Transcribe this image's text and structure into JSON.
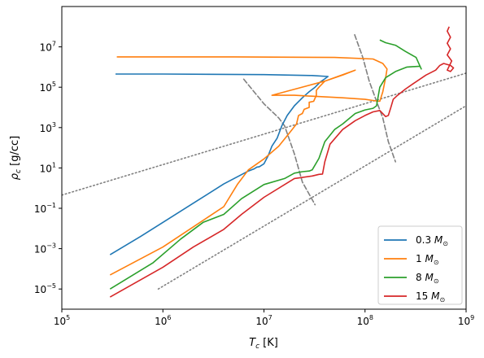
{
  "chart_data": {
    "type": "line",
    "xlabel_main": "T",
    "xlabel_sub": "c",
    "xlabel_unit": " [K]",
    "ylabel_main": "ρ",
    "ylabel_sub": "c",
    "ylabel_unit": " [g/cc]",
    "x_scale": "log",
    "y_scale": "log",
    "xlim": [
      100000,
      1000000000
    ],
    "ylim": [
      1e-06,
      1000000000
    ],
    "x_ticks": [
      {
        "value": 100000,
        "base": "10",
        "exp": "5"
      },
      {
        "value": 1000000,
        "base": "10",
        "exp": "6"
      },
      {
        "value": 10000000,
        "base": "10",
        "exp": "7"
      },
      {
        "value": 100000000,
        "base": "10",
        "exp": "8"
      },
      {
        "value": 1000000000,
        "base": "10",
        "exp": "9"
      }
    ],
    "y_ticks": [
      {
        "value": 1e-05,
        "base": "10",
        "exp": "−5"
      },
      {
        "value": 0.001,
        "base": "10",
        "exp": "−3"
      },
      {
        "value": 0.1,
        "base": "10",
        "exp": "−1"
      },
      {
        "value": 10,
        "base": "10",
        "exp": "1"
      },
      {
        "value": 1000,
        "base": "10",
        "exp": "3"
      },
      {
        "value": 100000,
        "base": "10",
        "exp": "5"
      },
      {
        "value": 10000000,
        "base": "10",
        "exp": "7"
      }
    ],
    "grid": false,
    "legend_position": "lower-right",
    "series": [
      {
        "name": "0.3",
        "name_unit": "M",
        "name_sub": "⊙",
        "color": "#1f77b4",
        "points": [
          [
            300000,
            0.0005
          ],
          [
            600000,
            0.004
          ],
          [
            1000000,
            0.02
          ],
          [
            2000000,
            0.18
          ],
          [
            4000000,
            1.6
          ],
          [
            7000000,
            7
          ],
          [
            8000000,
            9
          ],
          [
            8500000,
            11
          ],
          [
            9000000,
            11.5
          ],
          [
            10000000,
            16
          ],
          [
            11000000,
            40
          ],
          [
            12000000,
            120
          ],
          [
            13500000,
            300
          ],
          [
            15000000,
            1200
          ],
          [
            17000000,
            4000
          ],
          [
            20000000,
            12000
          ],
          [
            24000000,
            30000
          ],
          [
            28000000,
            60000
          ],
          [
            32000000,
            100000
          ],
          [
            36000000,
            180000
          ],
          [
            40000000,
            260000
          ],
          [
            43000000,
            340000
          ],
          [
            30000000,
            380000
          ],
          [
            10000000,
            420000
          ],
          [
            1000000,
            450000
          ],
          [
            340000,
            450000
          ]
        ]
      },
      {
        "name": "1",
        "name_unit": "M",
        "name_sub": "⊙",
        "color": "#ff7f0e",
        "points": [
          [
            300000,
            5e-05
          ],
          [
            1000000,
            0.0012
          ],
          [
            2000000,
            0.012
          ],
          [
            4000000,
            0.12
          ],
          [
            5500000,
            1.6
          ],
          [
            7000000,
            8
          ],
          [
            10000000,
            28
          ],
          [
            14000000,
            120
          ],
          [
            17000000,
            400
          ],
          [
            19000000,
            800
          ],
          [
            21000000,
            1500
          ],
          [
            22000000,
            4000
          ],
          [
            24000000,
            5000
          ],
          [
            25000000,
            8000
          ],
          [
            28000000,
            10000
          ],
          [
            28000000,
            18000
          ],
          [
            31000000,
            20000
          ],
          [
            33000000,
            40000
          ],
          [
            33000000,
            70000
          ],
          [
            35000000,
            100000
          ],
          [
            40000000,
            200000
          ],
          [
            60000000,
            400000
          ],
          [
            80000000,
            700000
          ],
          [
            40000000,
            200000
          ],
          [
            12000000,
            40000
          ],
          [
            20000000,
            40000
          ],
          [
            60000000,
            30000
          ],
          [
            100000000,
            25000
          ],
          [
            120000000,
            22000
          ],
          [
            140000000,
            20000
          ],
          [
            150000000,
            60000
          ],
          [
            160000000,
            300000
          ],
          [
            165000000,
            800000
          ],
          [
            150000000,
            1500000
          ],
          [
            120000000,
            2500000
          ],
          [
            50000000,
            3000000
          ],
          [
            5000000,
            3200000
          ],
          [
            350000,
            3200000
          ]
        ]
      },
      {
        "name": "8",
        "name_unit": "M",
        "name_sub": "⊙",
        "color": "#2ca02c",
        "points": [
          [
            300000,
            1e-05
          ],
          [
            800000,
            0.0002
          ],
          [
            1500000,
            0.003
          ],
          [
            2500000,
            0.02
          ],
          [
            4000000,
            0.05
          ],
          [
            6000000,
            0.3
          ],
          [
            10000000,
            1.5
          ],
          [
            16000000,
            3
          ],
          [
            20000000,
            5.5
          ],
          [
            24000000,
            6.5
          ],
          [
            28000000,
            7
          ],
          [
            30000000,
            8
          ],
          [
            35000000,
            30
          ],
          [
            40000000,
            200
          ],
          [
            50000000,
            800
          ],
          [
            60000000,
            1500
          ],
          [
            80000000,
            5000
          ],
          [
            100000000,
            7500
          ],
          [
            120000000,
            9000
          ],
          [
            130000000,
            12000
          ],
          [
            140000000,
            100000
          ],
          [
            160000000,
            300000
          ],
          [
            200000000,
            600000
          ],
          [
            260000000,
            1000000
          ],
          [
            350000000,
            1100000
          ],
          [
            360000000,
            800000
          ],
          [
            320000000,
            3000000
          ],
          [
            250000000,
            6000000
          ],
          [
            200000000,
            12000000
          ],
          [
            160000000,
            16000000
          ],
          [
            140000000,
            22000000
          ]
        ]
      },
      {
        "name": "15",
        "name_unit": "M",
        "name_sub": "⊙",
        "color": "#d62728",
        "points": [
          [
            300000,
            4e-06
          ],
          [
            1000000,
            0.00012
          ],
          [
            2000000,
            0.0012
          ],
          [
            4000000,
            0.009
          ],
          [
            6000000,
            0.05
          ],
          [
            10000000,
            0.35
          ],
          [
            20000000,
            3
          ],
          [
            30000000,
            4
          ],
          [
            35000000,
            4.8
          ],
          [
            38000000,
            5
          ],
          [
            40000000,
            20
          ],
          [
            45000000,
            150
          ],
          [
            60000000,
            800
          ],
          [
            80000000,
            2200
          ],
          [
            100000000,
            4000
          ],
          [
            120000000,
            6000
          ],
          [
            140000000,
            7000
          ],
          [
            160000000,
            3500
          ],
          [
            170000000,
            4000
          ],
          [
            180000000,
            10000
          ],
          [
            190000000,
            25000
          ],
          [
            210000000,
            40000
          ],
          [
            250000000,
            80000
          ],
          [
            300000000,
            150000
          ],
          [
            400000000,
            400000
          ],
          [
            500000000,
            700000
          ],
          [
            550000000,
            1200000
          ],
          [
            600000000,
            1500000
          ],
          [
            700000000,
            1200000
          ],
          [
            750000000,
            900000
          ],
          [
            700000000,
            600000
          ],
          [
            650000000,
            700000
          ],
          [
            720000000,
            2000000
          ],
          [
            650000000,
            4000000
          ],
          [
            700000000,
            8000000
          ],
          [
            650000000,
            15000000
          ],
          [
            700000000,
            30000000
          ],
          [
            650000000,
            60000000
          ],
          [
            680000000,
            100000000
          ]
        ]
      }
    ],
    "reference_lines": [
      {
        "style": "dotted",
        "color": "#808080",
        "points": [
          [
            100000,
            0.45
          ],
          [
            1000000000,
            500000
          ]
        ]
      },
      {
        "style": "dotted",
        "color": "#808080",
        "points": [
          [
            900000,
            1e-05
          ],
          [
            1000000000,
            12000
          ]
        ]
      },
      {
        "style": "dashed",
        "color": "#808080",
        "points": [
          [
            6300000,
            250000
          ],
          [
            10000000,
            15000
          ],
          [
            14000000,
            3000
          ],
          [
            16000000,
            1200
          ],
          [
            20000000,
            50
          ],
          [
            24000000,
            2
          ],
          [
            32000000,
            0.15
          ]
        ]
      },
      {
        "style": "dashed",
        "color": "#808080",
        "points": [
          [
            79000000,
            40000000
          ],
          [
            95000000,
            3000000
          ],
          [
            110000000,
            200000
          ],
          [
            130000000,
            20000
          ],
          [
            150000000,
            3000
          ],
          [
            170000000,
            200
          ],
          [
            200000000,
            20
          ]
        ]
      }
    ]
  }
}
